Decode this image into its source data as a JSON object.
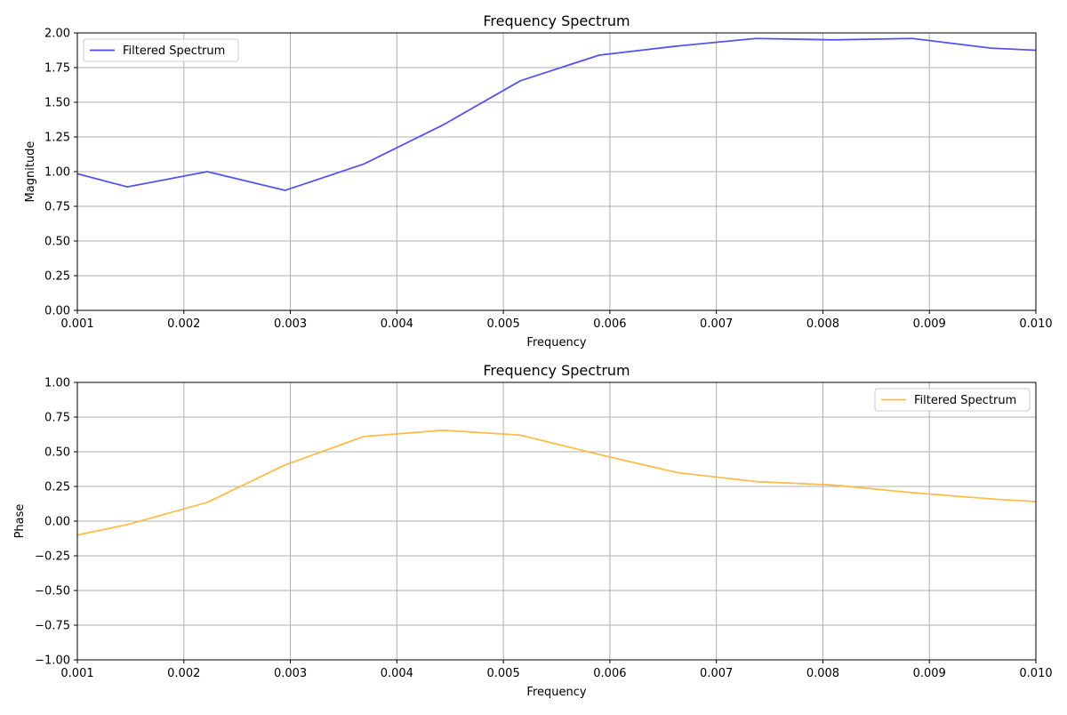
{
  "chart_data": [
    {
      "type": "line",
      "title": "Frequency Spectrum",
      "xlabel": "Frequency",
      "ylabel": "Magnitude",
      "xlim": [
        0.001,
        0.01
      ],
      "ylim": [
        0.0,
        2.0
      ],
      "grid": true,
      "legend_position": "top-left",
      "x_ticks": [
        "0.001",
        "0.002",
        "0.003",
        "0.004",
        "0.005",
        "0.006",
        "0.007",
        "0.008",
        "0.009",
        "0.010"
      ],
      "y_ticks": [
        "0.00",
        "0.25",
        "0.50",
        "0.75",
        "1.00",
        "1.25",
        "1.50",
        "1.75",
        "2.00"
      ],
      "series": [
        {
          "name": "Filtered Spectrum",
          "color": "#4b4bef",
          "x": [
            0.001,
            0.00147,
            0.00222,
            0.00295,
            0.00369,
            0.00443,
            0.00516,
            0.0059,
            0.00663,
            0.00737,
            0.0081,
            0.00884,
            0.00958,
            0.01
          ],
          "values": [
            0.985,
            0.89,
            1.0,
            0.865,
            1.055,
            1.335,
            1.655,
            1.84,
            1.905,
            1.96,
            1.95,
            1.96,
            1.89,
            1.875
          ]
        }
      ]
    },
    {
      "type": "line",
      "title": "Frequency Spectrum",
      "xlabel": "Frequency",
      "ylabel": "Phase",
      "xlim": [
        0.001,
        0.01
      ],
      "ylim": [
        -1.0,
        1.0
      ],
      "grid": true,
      "legend_position": "top-right",
      "x_ticks": [
        "0.001",
        "0.002",
        "0.003",
        "0.004",
        "0.005",
        "0.006",
        "0.007",
        "0.008",
        "0.009",
        "0.010"
      ],
      "y_ticks": [
        "−1.00",
        "−0.75",
        "−0.50",
        "−0.25",
        "0.00",
        "0.25",
        "0.50",
        "0.75",
        "1.00"
      ],
      "series": [
        {
          "name": "Filtered Spectrum",
          "color": "#ffb83f",
          "x": [
            0.001,
            0.00147,
            0.00222,
            0.00295,
            0.00369,
            0.00443,
            0.00516,
            0.0059,
            0.00663,
            0.00737,
            0.0081,
            0.00884,
            0.00958,
            0.01
          ],
          "values": [
            -0.1,
            -0.025,
            0.135,
            0.405,
            0.61,
            0.655,
            0.62,
            0.48,
            0.35,
            0.285,
            0.26,
            0.205,
            0.16,
            0.14
          ]
        }
      ]
    }
  ]
}
